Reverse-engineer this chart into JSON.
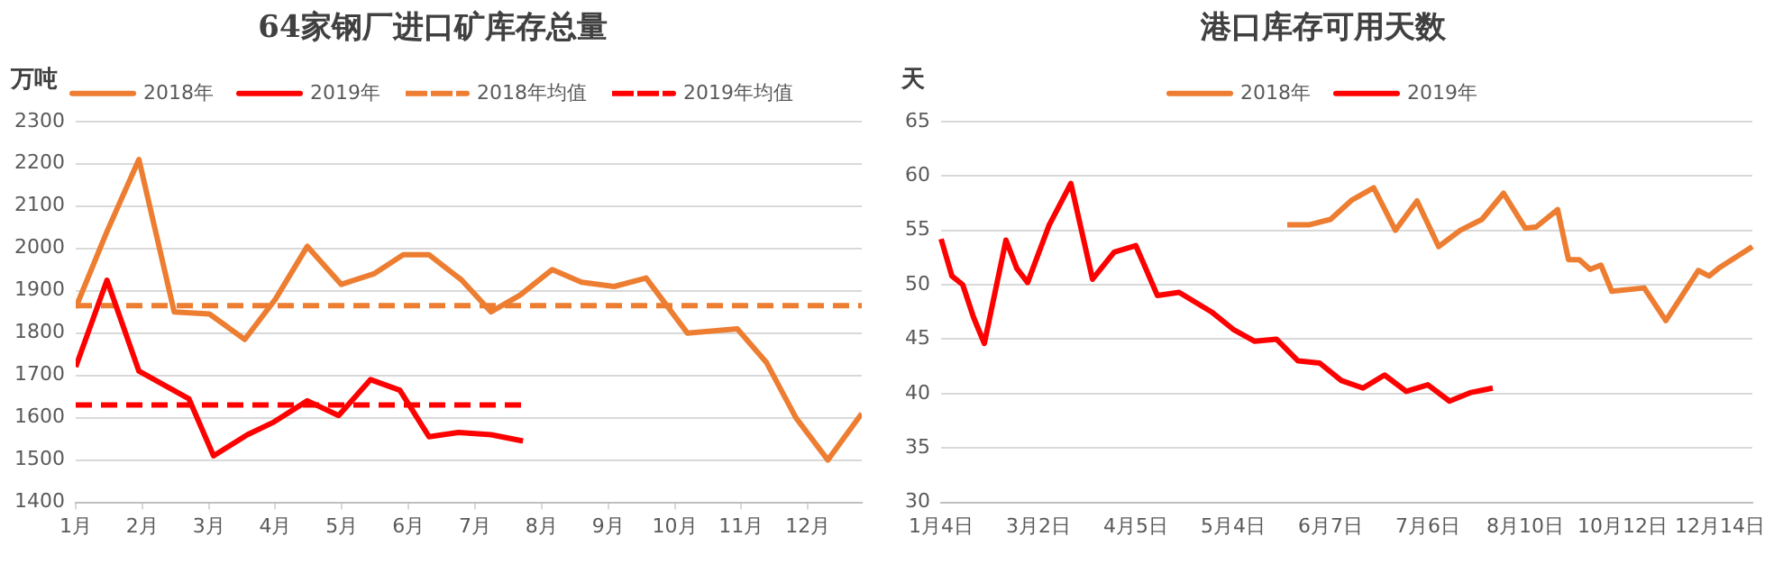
{
  "chart_data": [
    {
      "type": "line",
      "title": "64家钢厂进口矿库存总量",
      "ylabel": "万吨",
      "legend": "top",
      "grid": "y",
      "marker": "none",
      "xlim": [
        1,
        12.81
      ],
      "xticks": [
        {
          "value": 1,
          "label": "1月"
        },
        {
          "value": 2,
          "label": "2月"
        },
        {
          "value": 3,
          "label": "3月"
        },
        {
          "value": 4,
          "label": "4月"
        },
        {
          "value": 5,
          "label": "5月"
        },
        {
          "value": 6,
          "label": "6月"
        },
        {
          "value": 7,
          "label": "7月"
        },
        {
          "value": 8,
          "label": "8月"
        },
        {
          "value": 9,
          "label": "9月"
        },
        {
          "value": 10,
          "label": "10月"
        },
        {
          "value": 11,
          "label": "11月"
        },
        {
          "value": 12,
          "label": "12月"
        }
      ],
      "ylim": [
        1400,
        2300
      ],
      "yticks": [
        1400,
        1500,
        1600,
        1700,
        1800,
        1900,
        2000,
        2100,
        2200,
        2300
      ],
      "series": [
        {
          "name": "2018年",
          "color": "#ed7d31",
          "line_style": "solid",
          "x": [
            1.0,
            1.47,
            1.95,
            2.48,
            3.01,
            3.54,
            4.0,
            4.48,
            4.99,
            5.48,
            5.92,
            6.31,
            6.8,
            7.24,
            7.68,
            8.16,
            8.6,
            9.09,
            9.57,
            10.19,
            10.94,
            11.38,
            11.82,
            12.3,
            12.81
          ],
          "values": [
            1860,
            2040,
            2210,
            1850,
            1845,
            1785,
            1880,
            2005,
            1915,
            1940,
            1985,
            1985,
            1925,
            1850,
            1890,
            1950,
            1920,
            1910,
            1930,
            1800,
            1810,
            1730,
            1600,
            1500,
            1610
          ]
        },
        {
          "name": "2019年",
          "color": "#ff0000",
          "line_style": "solid",
          "x": [
            1.0,
            1.47,
            1.95,
            2.7,
            3.07,
            3.58,
            3.98,
            4.48,
            4.95,
            5.43,
            5.87,
            6.31,
            6.75,
            7.24,
            7.72
          ],
          "values": [
            1720,
            1925,
            1710,
            1645,
            1510,
            1560,
            1590,
            1640,
            1605,
            1690,
            1665,
            1555,
            1565,
            1560,
            1545
          ]
        },
        {
          "name": "2018年均值",
          "color": "#ed7d31",
          "line_style": "dashed",
          "x": [
            1,
            12.81
          ],
          "values": [
            1865,
            1865
          ]
        },
        {
          "name": "2019年均值",
          "color": "#ff0000",
          "line_style": "dashed",
          "x": [
            1,
            7.72
          ],
          "values": [
            1630,
            1630
          ]
        }
      ]
    },
    {
      "type": "line",
      "title": "港口库存可用天数",
      "ylabel": "天",
      "legend": "top",
      "grid": "y",
      "marker": "none",
      "categories": [
        "1月4日",
        null,
        null,
        null,
        null,
        null,
        null,
        null,
        null,
        "3月2日",
        null,
        null,
        null,
        null,
        null,
        null,
        null,
        null,
        "4月5日",
        null,
        null,
        null,
        null,
        null,
        null,
        null,
        null,
        "5月4日",
        null,
        null,
        null,
        null,
        null,
        null,
        null,
        null,
        "6月7日",
        null,
        null,
        null,
        null,
        null,
        null,
        null,
        null,
        "7月6日",
        null,
        null,
        null,
        null,
        null,
        null,
        null,
        null,
        "8月10日",
        null,
        null,
        null,
        null,
        null,
        null,
        null,
        null,
        "10月12日",
        null,
        null,
        null,
        null,
        null,
        null,
        null,
        null,
        "12月14日",
        null,
        null,
        null
      ],
      "ylim": [
        30,
        65
      ],
      "yticks": [
        30,
        35,
        40,
        45,
        50,
        55,
        60,
        65
      ],
      "series": [
        {
          "name": "2018年",
          "color": "#ed7d31",
          "line_style": "solid",
          "values": [
            null,
            null,
            null,
            null,
            null,
            null,
            null,
            null,
            null,
            null,
            null,
            null,
            null,
            null,
            null,
            null,
            null,
            null,
            null,
            null,
            null,
            null,
            null,
            null,
            null,
            null,
            null,
            null,
            null,
            null,
            null,
            null,
            55.5,
            null,
            55.5,
            null,
            56.0,
            null,
            57.8,
            null,
            58.9,
            null,
            55.0,
            null,
            57.7,
            null,
            53.5,
            null,
            55.0,
            null,
            56.0,
            null,
            58.4,
            null,
            55.2,
            55.3,
            null,
            56.9,
            52.3,
            52.3,
            51.4,
            51.8,
            49.4,
            null,
            null,
            49.7,
            null,
            46.7,
            null,
            null,
            51.3,
            50.8,
            51.6,
            null,
            null,
            53.5
          ]
        },
        {
          "name": "2019年",
          "color": "#ff0000",
          "line_style": "solid",
          "values": [
            54.2,
            50.8,
            50.0,
            47.0,
            44.6,
            null,
            54.1,
            51.5,
            50.2,
            null,
            55.5,
            null,
            59.3,
            null,
            50.5,
            null,
            53.0,
            null,
            53.6,
            null,
            49.0,
            null,
            49.3,
            null,
            null,
            47.5,
            null,
            45.9,
            null,
            44.8,
            null,
            45.0,
            null,
            43.0,
            null,
            42.8,
            null,
            41.2,
            null,
            40.5,
            null,
            41.7,
            null,
            40.2,
            null,
            40.8,
            null,
            39.3,
            null,
            40.1,
            null,
            40.5,
            null,
            null,
            null,
            null,
            null,
            null,
            null,
            null,
            null,
            null,
            null,
            null,
            null,
            null,
            null,
            null,
            null,
            null,
            null,
            null,
            null,
            null,
            null,
            null
          ]
        }
      ]
    }
  ]
}
